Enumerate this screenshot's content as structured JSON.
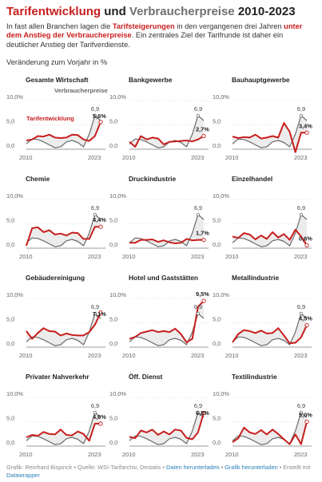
{
  "header": {
    "title_part1": "Tarifentwicklung",
    "title_part2": " und ",
    "title_part3": "Verbraucherpreise",
    "title_part4": " 2010-2023",
    "desc_1": "In fast allen Branchen lagen die ",
    "desc_2": "Tarifsteigerungen",
    "desc_3": " in den vergangenen drei Jahren ",
    "desc_4": "unter dem Anstieg der Verbraucherpreise",
    "desc_5": ". Ein zentrales Ziel der Tarifrunde ist daher ein deutlicher Anstieg der Tarifverdienste.",
    "subtitle": "Veränderung zum Vorjahr in %"
  },
  "colors": {
    "tarif": "#c71e1d",
    "vpi": "#6b6b6b",
    "fill": "#ececec",
    "grid": "#d9d9d9",
    "axis": "#777777"
  },
  "footer": {
    "source": "Grafik: Reinhard Bispinck • Quelle: WSI-Tarifarchiv, Destatis • ",
    "link1": "Daten herunterladen",
    "sep": " • ",
    "link2": "Grafik herunterladen",
    "created": " • Erstellt mit",
    "link3": "Datawrapper"
  },
  "chart_data": {
    "type": "line",
    "x": [
      2010,
      2011,
      2012,
      2013,
      2014,
      2015,
      2016,
      2017,
      2018,
      2019,
      2020,
      2021,
      2022,
      2023
    ],
    "ylim": [
      0,
      10
    ],
    "yticks": [
      "0,0",
      "5,0",
      "10,0%"
    ],
    "xticks": [
      "2010",
      "2023"
    ],
    "vpi": [
      1.1,
      2.1,
      2.0,
      1.5,
      0.9,
      0.3,
      0.5,
      1.5,
      1.8,
      1.4,
      0.5,
      3.1,
      6.9,
      5.9
    ],
    "vpi_label": "6,9",
    "legend": {
      "tarif": "Tarifentwicklung",
      "vpi": "Verbraucherpreise"
    },
    "panels": [
      {
        "name": "Gesamte Wirtschaft",
        "end_label": "5,6%",
        "tarif": [
          1.8,
          2.0,
          2.7,
          2.6,
          3.0,
          2.4,
          2.3,
          2.4,
          3.0,
          2.9,
          2.0,
          1.7,
          2.7,
          5.6
        ]
      },
      {
        "name": "Bankgewerbe",
        "end_label": "2,7%",
        "tarif": [
          1.5,
          0.5,
          2.7,
          2.0,
          2.4,
          2.2,
          1.0,
          1.5,
          1.6,
          1.7,
          1.8,
          1.6,
          2.0,
          2.7
        ]
      },
      {
        "name": "Bauhauptgewerbe",
        "end_label": "3,4%",
        "tarif": [
          2.6,
          2.3,
          2.5,
          2.4,
          3.0,
          2.2,
          2.4,
          2.7,
          2.4,
          5.4,
          3.6,
          -0.6,
          3.4,
          3.4
        ]
      },
      {
        "name": "Chemie",
        "end_label": "4,4%",
        "tarif": [
          0.5,
          4.1,
          4.3,
          3.3,
          3.7,
          2.8,
          3.0,
          2.6,
          3.2,
          3.1,
          1.9,
          1.9,
          4.4,
          4.4
        ]
      },
      {
        "name": "Druckindustrie",
        "end_label": "1,7%",
        "tarif": [
          1.1,
          1.1,
          1.7,
          1.7,
          1.8,
          1.3,
          1.6,
          1.2,
          1.0,
          1.1,
          1.9,
          1.6,
          1.7,
          1.7
        ]
      },
      {
        "name": "Einzelhandel",
        "end_label": "0,6%",
        "tarif": [
          2.4,
          2.1,
          3.1,
          2.8,
          1.8,
          2.6,
          1.9,
          3.3,
          2.2,
          2.9,
          1.7,
          3.8,
          2.4,
          0.6
        ]
      },
      {
        "name": "Gebäudereinigung",
        "end_label": "7,1%",
        "tarif": [
          3.3,
          1.7,
          2.9,
          3.9,
          3.3,
          3.2,
          2.4,
          2.8,
          2.5,
          2.4,
          2.4,
          3.1,
          4.6,
          7.1
        ]
      },
      {
        "name": "Hotel und Gaststätten",
        "end_label": "9,5%",
        "tarif": [
          1.7,
          2.1,
          2.9,
          3.2,
          3.5,
          3.1,
          3.3,
          3.1,
          3.8,
          2.7,
          1.0,
          1.7,
          8.3,
          9.5
        ]
      },
      {
        "name": "Metallindustrie",
        "end_label": "4,5%",
        "tarif": [
          1.0,
          2.7,
          3.5,
          3.3,
          2.9,
          3.4,
          2.8,
          2.9,
          3.9,
          2.4,
          0.8,
          0.9,
          2.0,
          4.5
        ]
      },
      {
        "name": "Privater Nahverkehr",
        "end_label": "4,6%",
        "tarif": [
          1.8,
          2.3,
          2.1,
          2.9,
          2.5,
          2.4,
          3.4,
          2.3,
          2.2,
          3.0,
          2.5,
          1.1,
          4.6,
          4.6
        ]
      },
      {
        "name": "Öff. Dienst",
        "end_label": "6,8%",
        "tarif": [
          1.9,
          1.6,
          3.2,
          2.8,
          3.4,
          2.3,
          3.0,
          2.4,
          3.4,
          3.2,
          1.7,
          1.4,
          2.8,
          6.8
        ]
      },
      {
        "name": "Textilindustrie",
        "end_label": "5,0%",
        "tarif": [
          0.8,
          1.6,
          3.8,
          2.8,
          2.5,
          3.3,
          2.4,
          3.4,
          2.5,
          1.4,
          0.4,
          2.4,
          0.4,
          5.0
        ]
      }
    ]
  }
}
